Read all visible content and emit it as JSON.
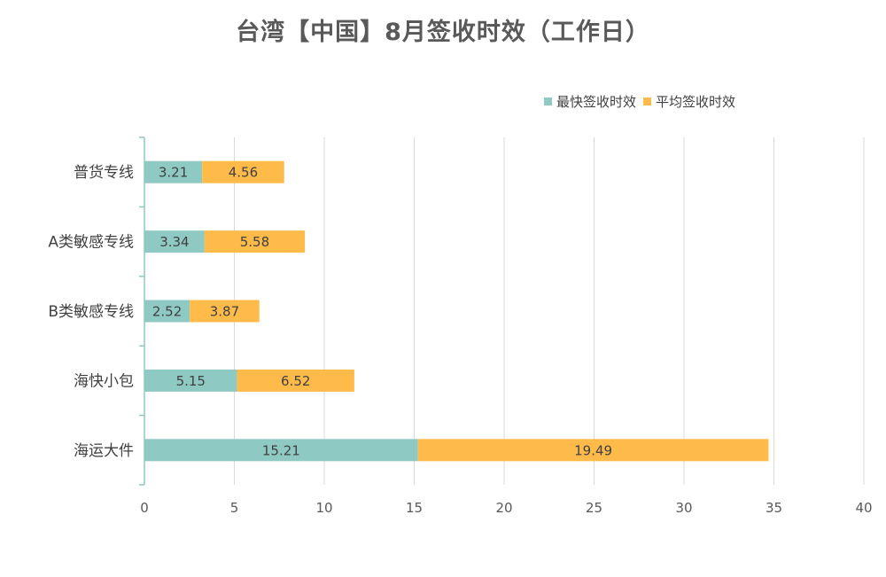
{
  "chart_data": {
    "type": "bar",
    "orientation": "horizontal",
    "stacked": true,
    "title": "台湾【中国】8月签收时效（工作日）",
    "categories": [
      "普货专线",
      "A类敏感专线",
      "B类敏感专线",
      "海快小包",
      "海运大件"
    ],
    "series": [
      {
        "name": "最快签收时效",
        "color": "#8FC9C4",
        "values": [
          3.21,
          3.34,
          2.52,
          5.15,
          15.21
        ]
      },
      {
        "name": "平均签收时效",
        "color": "#FFBB4A",
        "values": [
          4.56,
          5.58,
          3.87,
          6.52,
          19.49
        ]
      }
    ],
    "xlim": [
      0,
      40
    ],
    "xticks": [
      0,
      5,
      10,
      15,
      20,
      25,
      30,
      35,
      40
    ],
    "grid": true,
    "legend_position": "top-right",
    "data_labels": true
  },
  "colors": {
    "axis": "#8FC9C4",
    "grid": "#D9D9D9"
  }
}
